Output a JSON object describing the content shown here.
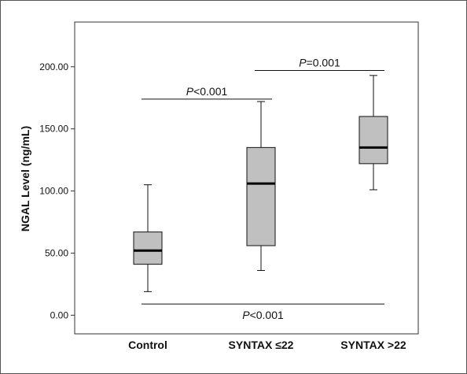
{
  "chart_data": {
    "type": "box",
    "ylabel": "NGAL Level (ng/mL)",
    "xlabel": "",
    "ylim": [
      -15,
      236
    ],
    "yticks": [
      0,
      50,
      100,
      150,
      200
    ],
    "ytick_labels": [
      "0.00",
      "50.00",
      "100.00",
      "150.00",
      "200.00"
    ],
    "categories": [
      "Control",
      "SYNTAX ≤22",
      "SYNTAX >22"
    ],
    "boxes": [
      {
        "category": "Control",
        "whisker_low": 19,
        "q1": 41,
        "median": 52,
        "q3": 67,
        "whisker_high": 105
      },
      {
        "category": "SYNTAX ≤22",
        "whisker_low": 36,
        "q1": 56,
        "median": 106,
        "q3": 135,
        "whisker_high": 172
      },
      {
        "category": "SYNTAX >22",
        "whisker_low": 101,
        "q1": 122,
        "median": 135,
        "q3": 160,
        "whisker_high": 193
      }
    ],
    "box_fill": "#c0c0c0",
    "comparisons": [
      {
        "from": "Control",
        "to": "SYNTAX ≤22",
        "y": 174,
        "italic": "P",
        "rest": "<0.001"
      },
      {
        "from": "SYNTAX ≤22",
        "to": "SYNTAX >22",
        "y": 197,
        "italic": "P",
        "rest": "=0.001"
      },
      {
        "from": "Control",
        "to": "SYNTAX >22",
        "y": 9,
        "italic": "P",
        "rest": "<0.001"
      }
    ]
  }
}
